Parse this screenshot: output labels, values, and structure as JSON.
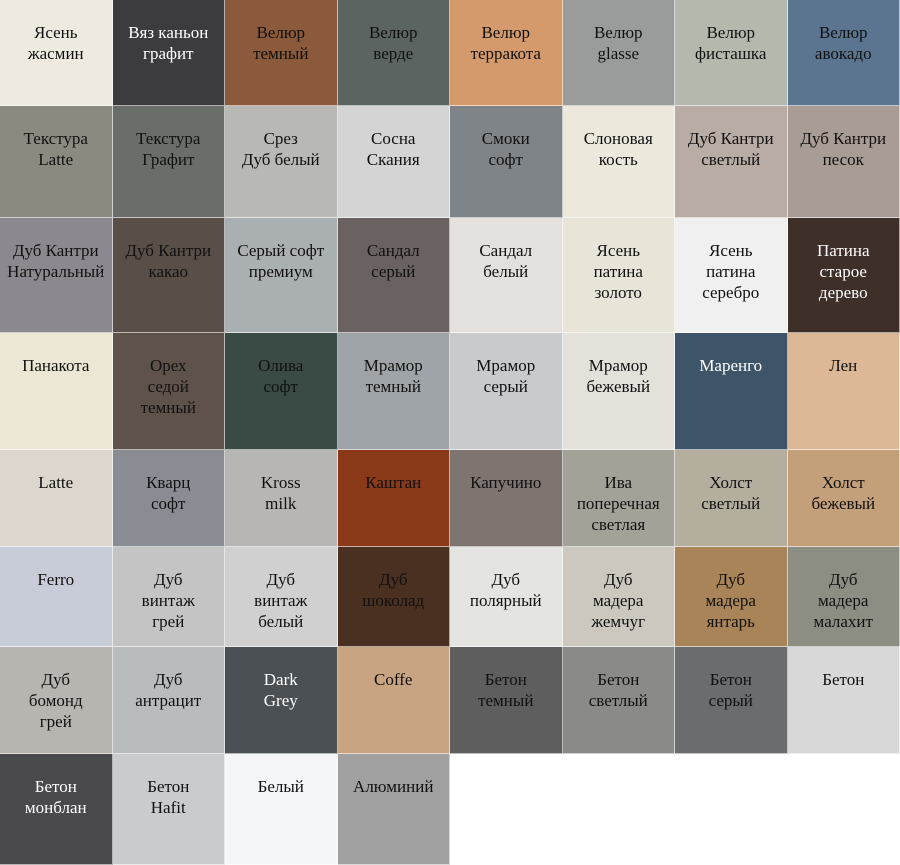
{
  "swatches": [
    "Ясень\nжасмин",
    "Вяз каньон\nграфит",
    "Велюр\nтемный",
    "Велюр\nверде",
    "Велюр\nтерракота",
    "Велюр\nglasse",
    "Велюр\nфисташка",
    "Велюр\nавокадо",
    "Текстура\nLatte",
    "Текстура\nГрафит",
    "Срез\nДуб белый",
    "Сосна\nСкания",
    "Смоки\nсофт",
    "Слоновая\nкость",
    "Дуб Кантри\nсветлый",
    "Дуб Кантри\nпесок",
    "Дуб Кантри\nНатуральный",
    "Дуб Кантри\nкакао",
    "Серый софт\nпремиум",
    "Сандал\nсерый",
    "Сандал\nбелый",
    "Ясень\nпатина\nзолото",
    "Ясень\nпатина\nсеребро",
    "Патина\nстарое\nдерево",
    "Панакота",
    "Орех\nседой\nтемный",
    "Олива\nсофт",
    "Мрамор\nтемный",
    "Мрамор\nсерый",
    "Мрамор\nбежевый",
    "Маренго",
    "Лен",
    "Latte",
    "Кварц\nсофт",
    "Kross\nmilk",
    "Каштан",
    "Капучино",
    "Ива\nпоперечная\nсветлая",
    "Холст\nсветлый",
    "Холст\nбежевый",
    "Ferro",
    "Дуб\nвинтаж\nгрей",
    "Дуб\nвинтаж\nбелый",
    "Дуб\nшоколад",
    "Дуб\nполярный",
    "Дуб\nмадера\nжемчуг",
    "Дуб\nмадера\nянтарь",
    "Дуб\nмадера\nмалахит",
    "Дуб\nбомонд\nгрей",
    "Дуб\nантрацит",
    "Dark\nGrey",
    "Coffe",
    "Бетон\nтемный",
    "Бетон\nсветлый",
    "Бетон\nсерый",
    "Бетон",
    "Бетон\nмонблан",
    "Бетон\nHafit",
    "Белый",
    "Алюминий"
  ]
}
